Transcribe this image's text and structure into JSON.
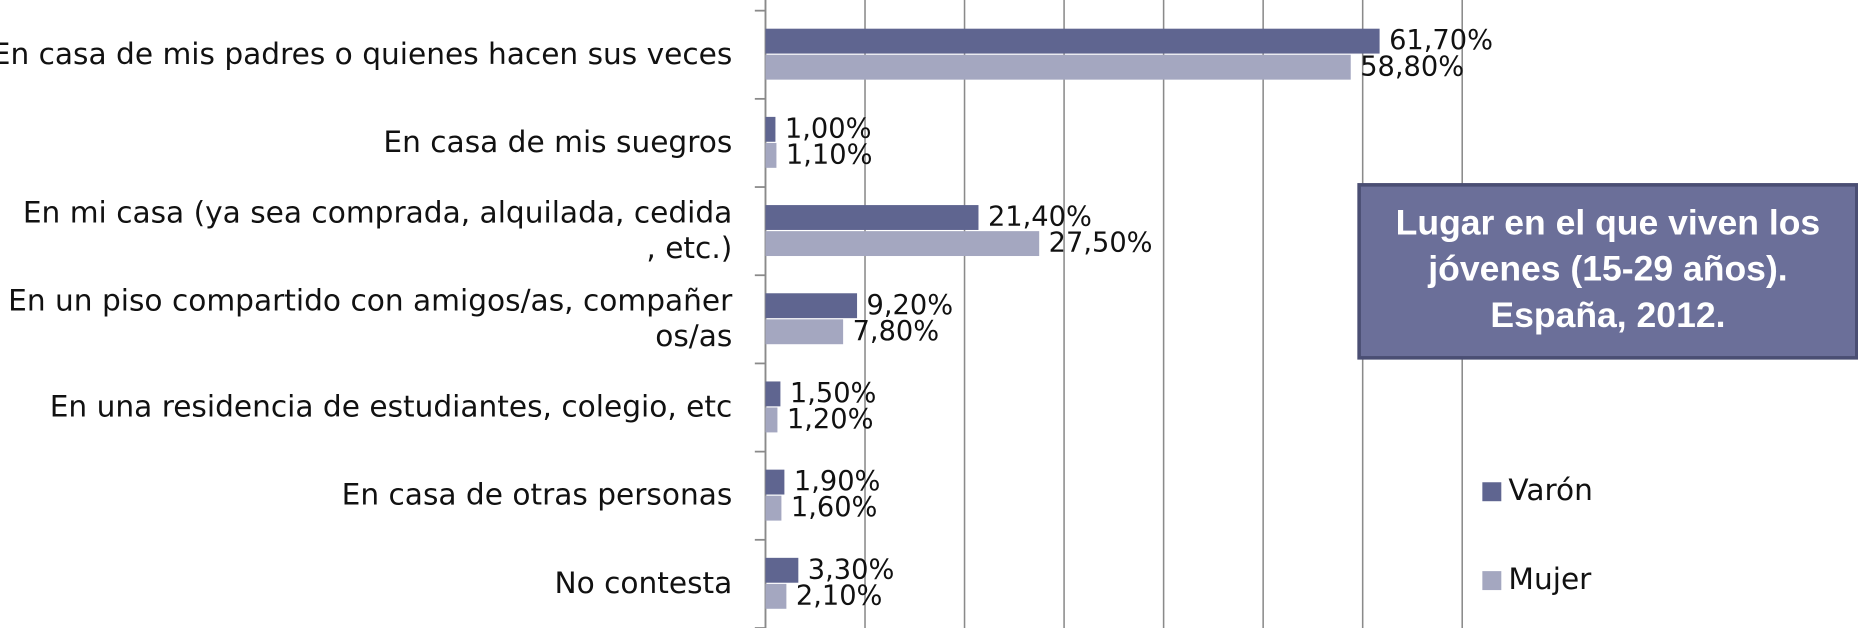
{
  "chart_data": {
    "type": "barh",
    "categories": [
      "En casa de mis padres o quienes hacen sus veces",
      "En casa de mis suegros",
      "En mi casa (ya sea comprada, alquilada, cedida\n, etc.)",
      "En un piso compartido con amigos/as, compañer\nos/as",
      "En una residencia de estudiantes, colegio, etc",
      "En casa de otras personas",
      "No contesta"
    ],
    "series": [
      {
        "name": "Varón",
        "color": "#5f6590",
        "values": [
          61.7,
          1.0,
          21.4,
          9.2,
          1.5,
          1.9,
          3.3
        ],
        "value_labels": [
          "61,70%",
          "1,00%",
          "21,40%",
          "9,20%",
          "1,50%",
          "1,90%",
          "3,30%"
        ]
      },
      {
        "name": "Mujer",
        "color": "#a4a7c0",
        "values": [
          58.8,
          1.1,
          27.5,
          7.8,
          1.2,
          1.6,
          2.1
        ],
        "value_labels": [
          "58,80%",
          "1,10%",
          "27,50%",
          "7,80%",
          "1,20%",
          "1,60%",
          "2,10%"
        ]
      }
    ],
    "annotation": [
      "Lugar en el que viven los",
      "jóvenes (15-29 años).",
      "España, 2012."
    ],
    "xlim": [
      0,
      70
    ],
    "xticks": [
      0,
      10,
      20,
      30,
      40,
      50,
      60,
      70
    ],
    "grid": true
  }
}
